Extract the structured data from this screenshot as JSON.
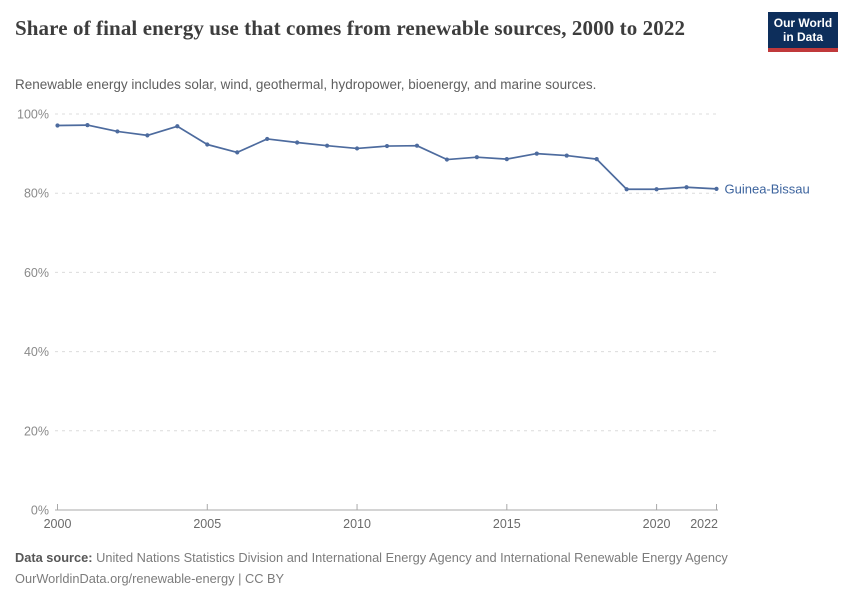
{
  "header": {
    "title": "Share of final energy use that comes from renewable sources, 2000 to 2022",
    "subtitle": "Renewable energy includes solar, wind, geothermal, hydropower, bioenergy, and marine sources.",
    "logo": {
      "line1": "Our World",
      "line2": "in Data",
      "bg_color": "#0d2e5b",
      "accent_color": "#c0393b"
    }
  },
  "chart_data": {
    "type": "line",
    "title": "Share of final energy use that comes from renewable sources, 2000 to 2022",
    "xlabel": "",
    "ylabel": "",
    "x": [
      2000,
      2001,
      2002,
      2003,
      2004,
      2005,
      2006,
      2007,
      2008,
      2009,
      2010,
      2011,
      2012,
      2013,
      2014,
      2015,
      2016,
      2017,
      2018,
      2019,
      2020,
      2021,
      2022
    ],
    "series": [
      {
        "name": "Guinea-Bissau",
        "color": "#4d6b9e",
        "values": [
          97.1,
          97.2,
          95.6,
          94.6,
          96.9,
          92.3,
          90.3,
          93.7,
          92.8,
          92.0,
          91.3,
          91.9,
          92.0,
          88.5,
          89.1,
          88.6,
          90.0,
          89.5,
          88.6,
          81.0,
          81.0,
          81.5,
          81.1
        ]
      }
    ],
    "end_label": "Guinea-Bissau",
    "end_label_color": "#3d649e",
    "xlim": [
      2000,
      2022
    ],
    "ylim": [
      0,
      100
    ],
    "x_ticks": [
      2000,
      2005,
      2010,
      2015,
      2020,
      2022
    ],
    "y_ticks": [
      0,
      20,
      40,
      60,
      80,
      100
    ],
    "y_tick_suffix": "%",
    "grid": "horizontal-dashed",
    "legend_position": "end-of-line"
  },
  "footer": {
    "data_source_label": "Data source:",
    "data_source_text": " United Nations Statistics Division and International Energy Agency and International Renewable Energy Agency",
    "link_line": "OurWorldinData.org/renewable-energy | CC BY"
  }
}
